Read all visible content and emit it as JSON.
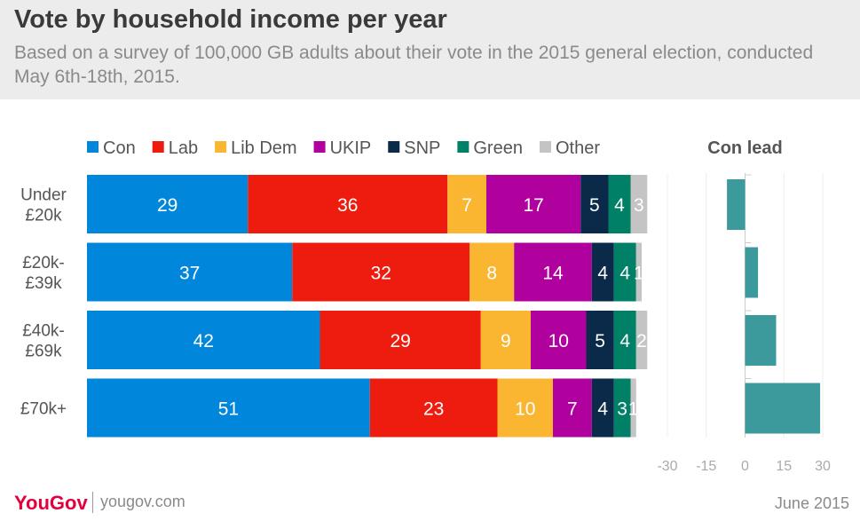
{
  "title": "Vote by household income per year",
  "subtitle": "Based on a survey of 100,000 GB adults about their vote in the 2015 general election, conducted May 6th-18th, 2015.",
  "footer": {
    "logo": "YouGov",
    "url": "yougov.com",
    "date": "June 2015"
  },
  "chart_data": [
    {
      "type": "bar",
      "orientation": "horizontal",
      "stacked": true,
      "categories": [
        "Under £20k",
        "£20k-£39k",
        "£40k-£69k",
        "£70k+"
      ],
      "series": [
        {
          "name": "Con",
          "color": "#0087dc",
          "values": [
            29,
            37,
            42,
            51
          ]
        },
        {
          "name": "Lab",
          "color": "#ee1c0f",
          "values": [
            36,
            32,
            29,
            23
          ]
        },
        {
          "name": "Lib Dem",
          "color": "#fbb631",
          "values": [
            7,
            8,
            9,
            10
          ]
        },
        {
          "name": "UKIP",
          "color": "#b0009e",
          "values": [
            17,
            14,
            10,
            7
          ]
        },
        {
          "name": "SNP",
          "color": "#0b2a4a",
          "values": [
            5,
            4,
            5,
            4
          ]
        },
        {
          "name": "Green",
          "color": "#008066",
          "values": [
            4,
            4,
            4,
            3
          ]
        },
        {
          "name": "Other",
          "color": "#c4c4c4",
          "values": [
            3,
            1,
            2,
            1
          ]
        }
      ],
      "xlim": [
        0,
        100
      ],
      "legend": "top"
    },
    {
      "type": "bar",
      "orientation": "horizontal",
      "title": "Con lead",
      "categories": [
        "Under £20k",
        "£20k-£39k",
        "£40k-£69k",
        "£70k+"
      ],
      "values": [
        -7,
        5,
        12,
        29
      ],
      "color": "#3d9a9c",
      "xlim": [
        -30,
        30
      ],
      "xticks": [
        -30,
        -15,
        0,
        15,
        30
      ],
      "grid": true
    }
  ]
}
